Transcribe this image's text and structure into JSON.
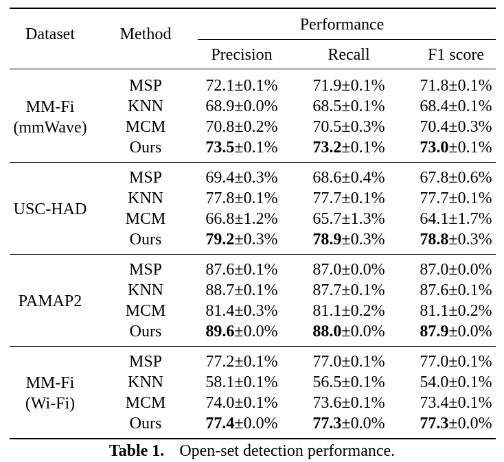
{
  "header": {
    "dataset": "Dataset",
    "method": "Method",
    "performance": "Performance",
    "metrics": [
      "Precision",
      "Recall",
      "F1 score"
    ]
  },
  "groups": [
    {
      "dataset_lines": [
        "MM-Fi",
        "(mmWave)"
      ],
      "rows": [
        {
          "method": "MSP",
          "values": [
            {
              "main": "72.1",
              "pm": "±0.1%",
              "bold": false
            },
            {
              "main": "71.9",
              "pm": "±0.1%",
              "bold": false
            },
            {
              "main": "71.8",
              "pm": "±0.1%",
              "bold": false
            }
          ]
        },
        {
          "method": "KNN",
          "values": [
            {
              "main": "68.9",
              "pm": "±0.0%",
              "bold": false
            },
            {
              "main": "68.5",
              "pm": "±0.1%",
              "bold": false
            },
            {
              "main": "68.4",
              "pm": "±0.1%",
              "bold": false
            }
          ]
        },
        {
          "method": "MCM",
          "values": [
            {
              "main": "70.8",
              "pm": "±0.2%",
              "bold": false
            },
            {
              "main": "70.5",
              "pm": "±0.3%",
              "bold": false
            },
            {
              "main": "70.4",
              "pm": "±0.3%",
              "bold": false
            }
          ]
        },
        {
          "method": "Ours",
          "values": [
            {
              "main": "73.5",
              "pm": "±0.1%",
              "bold": true
            },
            {
              "main": "73.2",
              "pm": "±0.1%",
              "bold": true
            },
            {
              "main": "73.0",
              "pm": "±0.1%",
              "bold": true
            }
          ]
        }
      ]
    },
    {
      "dataset_lines": [
        "USC-HAD"
      ],
      "rows": [
        {
          "method": "MSP",
          "values": [
            {
              "main": "69.4",
              "pm": "±0.3%",
              "bold": false
            },
            {
              "main": "68.6",
              "pm": "±0.4%",
              "bold": false
            },
            {
              "main": "67.8",
              "pm": "±0.6%",
              "bold": false
            }
          ]
        },
        {
          "method": "KNN",
          "values": [
            {
              "main": "77.8",
              "pm": "±0.1%",
              "bold": false
            },
            {
              "main": "77.7",
              "pm": "±0.1%",
              "bold": false
            },
            {
              "main": "77.7",
              "pm": "±0.1%",
              "bold": false
            }
          ]
        },
        {
          "method": "MCM",
          "values": [
            {
              "main": "66.8",
              "pm": "±1.2%",
              "bold": false
            },
            {
              "main": "65.7",
              "pm": "±1.3%",
              "bold": false
            },
            {
              "main": "64.1",
              "pm": "±1.7%",
              "bold": false
            }
          ]
        },
        {
          "method": "Ours",
          "values": [
            {
              "main": "79.2",
              "pm": "±0.3%",
              "bold": true
            },
            {
              "main": "78.9",
              "pm": "±0.3%",
              "bold": true
            },
            {
              "main": "78.8",
              "pm": "±0.3%",
              "bold": true
            }
          ]
        }
      ]
    },
    {
      "dataset_lines": [
        "PAMAP2"
      ],
      "rows": [
        {
          "method": "MSP",
          "values": [
            {
              "main": "87.6",
              "pm": "±0.1%",
              "bold": false
            },
            {
              "main": "87.0",
              "pm": "±0.0%",
              "bold": false
            },
            {
              "main": "87.0",
              "pm": "±0.0%",
              "bold": false
            }
          ]
        },
        {
          "method": "KNN",
          "values": [
            {
              "main": "88.7",
              "pm": "±0.1%",
              "bold": false
            },
            {
              "main": "87.7",
              "pm": "±0.1%",
              "bold": false
            },
            {
              "main": "87.6",
              "pm": "±0.1%",
              "bold": false
            }
          ]
        },
        {
          "method": "MCM",
          "values": [
            {
              "main": "81.4",
              "pm": "±0.3%",
              "bold": false
            },
            {
              "main": "81.1",
              "pm": "±0.2%",
              "bold": false
            },
            {
              "main": "81.1",
              "pm": "±0.2%",
              "bold": false
            }
          ]
        },
        {
          "method": "Ours",
          "values": [
            {
              "main": "89.6",
              "pm": "±0.0%",
              "bold": true
            },
            {
              "main": "88.0",
              "pm": "±0.0%",
              "bold": true
            },
            {
              "main": "87.9",
              "pm": "±0.0%",
              "bold": true
            }
          ]
        }
      ]
    },
    {
      "dataset_lines": [
        "MM-Fi",
        "(Wi-Fi)"
      ],
      "rows": [
        {
          "method": "MSP",
          "values": [
            {
              "main": "77.2",
              "pm": "±0.1%",
              "bold": false
            },
            {
              "main": "77.0",
              "pm": "±0.1%",
              "bold": false
            },
            {
              "main": "77.0",
              "pm": "±0.1%",
              "bold": false
            }
          ]
        },
        {
          "method": "KNN",
          "values": [
            {
              "main": "58.1",
              "pm": "±0.1%",
              "bold": false
            },
            {
              "main": "56.5",
              "pm": "±0.1%",
              "bold": false
            },
            {
              "main": "54.0",
              "pm": "±0.1%",
              "bold": false
            }
          ]
        },
        {
          "method": "MCM",
          "values": [
            {
              "main": "74.0",
              "pm": "±0.1%",
              "bold": false
            },
            {
              "main": "73.6",
              "pm": "±0.1%",
              "bold": false
            },
            {
              "main": "73.4",
              "pm": "±0.1%",
              "bold": false
            }
          ]
        },
        {
          "method": "Ours",
          "values": [
            {
              "main": "77.4",
              "pm": "±0.0%",
              "bold": true
            },
            {
              "main": "77.3",
              "pm": "±0.0%",
              "bold": true
            },
            {
              "main": "77.3",
              "pm": "±0.0%",
              "bold": true
            }
          ]
        }
      ]
    }
  ],
  "caption": {
    "label": "Table 1.",
    "text": "Open-set detection performance."
  }
}
